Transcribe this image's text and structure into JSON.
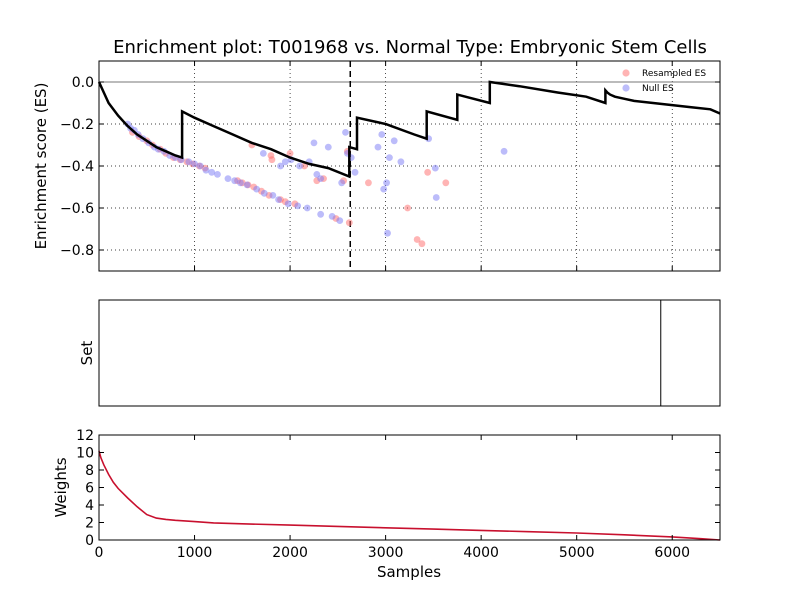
{
  "chart_data": [
    {
      "panel": "enrichment",
      "type": "line",
      "title": "Enrichment plot: T001968 vs. Normal Type: Embryonic Stem Cells",
      "xlabel": "",
      "ylabel": "Enrichment score (ES)",
      "xlim": [
        0,
        6500
      ],
      "ylim": [
        -0.9,
        0.1
      ],
      "yticks": [
        0.0,
        -0.2,
        -0.4,
        -0.6,
        -0.8
      ],
      "ytick_labels": [
        "0.0",
        "−0.2",
        "−0.4",
        "−0.6",
        "−0.8"
      ],
      "grid": true,
      "legend_position": "top-right",
      "baseline": 0.0,
      "peak_x": 2630,
      "es_curve": {
        "color": "#000000",
        "x": [
          0,
          100,
          200,
          300,
          400,
          500,
          600,
          700,
          800,
          870,
          870,
          1000,
          1200,
          1400,
          1600,
          1800,
          2000,
          2200,
          2400,
          2620,
          2620,
          2700,
          2700,
          3000,
          3300,
          3430,
          3430,
          3750,
          3750,
          4090,
          4090,
          4400,
          4800,
          5100,
          5300,
          5300,
          5320,
          5350,
          5400,
          5500,
          5600,
          5800,
          6000,
          6200,
          6400,
          6500
        ],
        "y": [
          0.0,
          -0.1,
          -0.16,
          -0.21,
          -0.25,
          -0.28,
          -0.31,
          -0.33,
          -0.35,
          -0.36,
          -0.14,
          -0.17,
          -0.21,
          -0.25,
          -0.29,
          -0.32,
          -0.36,
          -0.39,
          -0.41,
          -0.45,
          -0.31,
          -0.32,
          -0.17,
          -0.2,
          -0.25,
          -0.27,
          -0.14,
          -0.18,
          -0.06,
          -0.1,
          0.0,
          -0.02,
          -0.05,
          -0.07,
          -0.1,
          -0.04,
          -0.05,
          -0.06,
          -0.07,
          -0.08,
          -0.09,
          -0.1,
          -0.11,
          -0.12,
          -0.13,
          -0.15
        ]
      },
      "scatter_series": [
        {
          "name": "Resampled ES",
          "color": "#ff6a6a",
          "points": [
            [
              350,
              -0.24
            ],
            [
              420,
              -0.26
            ],
            [
              500,
              -0.28
            ],
            [
              560,
              -0.3
            ],
            [
              640,
              -0.32
            ],
            [
              700,
              -0.34
            ],
            [
              780,
              -0.36
            ],
            [
              850,
              -0.37
            ],
            [
              920,
              -0.38
            ],
            [
              980,
              -0.39
            ],
            [
              1050,
              -0.4
            ],
            [
              1110,
              -0.41
            ],
            [
              1450,
              -0.47
            ],
            [
              1500,
              -0.48
            ],
            [
              1560,
              -0.49
            ],
            [
              1620,
              -0.5
            ],
            [
              1700,
              -0.52
            ],
            [
              1780,
              -0.54
            ],
            [
              1900,
              -0.56
            ],
            [
              1950,
              -0.57
            ],
            [
              2050,
              -0.58
            ],
            [
              1600,
              -0.3
            ],
            [
              1800,
              -0.35
            ],
            [
              1810,
              -0.37
            ],
            [
              2000,
              -0.34
            ],
            [
              2150,
              -0.4
            ],
            [
              2280,
              -0.47
            ],
            [
              2350,
              -0.46
            ],
            [
              2480,
              -0.65
            ],
            [
              2560,
              -0.47
            ],
            [
              2600,
              -0.33
            ],
            [
              2620,
              -0.67
            ],
            [
              2820,
              -0.48
            ],
            [
              3230,
              -0.6
            ],
            [
              3330,
              -0.75
            ],
            [
              3380,
              -0.77
            ],
            [
              3440,
              -0.43
            ],
            [
              3630,
              -0.48
            ]
          ]
        },
        {
          "name": "Null ES",
          "color": "#7a7af5",
          "points": [
            [
              300,
              -0.2
            ],
            [
              330,
              -0.22
            ],
            [
              370,
              -0.23
            ],
            [
              410,
              -0.25
            ],
            [
              460,
              -0.27
            ],
            [
              520,
              -0.29
            ],
            [
              580,
              -0.31
            ],
            [
              620,
              -0.32
            ],
            [
              680,
              -0.33
            ],
            [
              740,
              -0.35
            ],
            [
              800,
              -0.36
            ],
            [
              860,
              -0.37
            ],
            [
              940,
              -0.38
            ],
            [
              1000,
              -0.39
            ],
            [
              1060,
              -0.4
            ],
            [
              1120,
              -0.42
            ],
            [
              1180,
              -0.43
            ],
            [
              1240,
              -0.44
            ],
            [
              1350,
              -0.46
            ],
            [
              1420,
              -0.47
            ],
            [
              1480,
              -0.48
            ],
            [
              1550,
              -0.49
            ],
            [
              1650,
              -0.51
            ],
            [
              1730,
              -0.53
            ],
            [
              1820,
              -0.54
            ],
            [
              1880,
              -0.56
            ],
            [
              1980,
              -0.58
            ],
            [
              2080,
              -0.59
            ],
            [
              2180,
              -0.6
            ],
            [
              2320,
              -0.63
            ],
            [
              2440,
              -0.64
            ],
            [
              2520,
              -0.66
            ],
            [
              1720,
              -0.34
            ],
            [
              1900,
              -0.4
            ],
            [
              1950,
              -0.38
            ],
            [
              2010,
              -0.37
            ],
            [
              2100,
              -0.4
            ],
            [
              2200,
              -0.38
            ],
            [
              2250,
              -0.29
            ],
            [
              2280,
              -0.44
            ],
            [
              2320,
              -0.46
            ],
            [
              2400,
              -0.31
            ],
            [
              2540,
              -0.48
            ],
            [
              2580,
              -0.24
            ],
            [
              2600,
              -0.34
            ],
            [
              2640,
              -0.36
            ],
            [
              2680,
              -0.43
            ],
            [
              2920,
              -0.31
            ],
            [
              2960,
              -0.25
            ],
            [
              2980,
              -0.51
            ],
            [
              3010,
              -0.48
            ],
            [
              3020,
              -0.72
            ],
            [
              3040,
              -0.36
            ],
            [
              3090,
              -0.28
            ],
            [
              3160,
              -0.38
            ],
            [
              3450,
              -0.27
            ],
            [
              3520,
              -0.41
            ],
            [
              3530,
              -0.55
            ],
            [
              4240,
              -0.33
            ]
          ]
        }
      ]
    },
    {
      "panel": "set",
      "type": "bar",
      "xlabel": "",
      "ylabel": "Set",
      "xlim": [
        0,
        6500
      ],
      "hits_x": [
        5880
      ]
    },
    {
      "panel": "weights",
      "type": "line",
      "xlabel": "Samples",
      "ylabel": "Weights",
      "xlim": [
        0,
        6500
      ],
      "ylim": [
        0,
        12
      ],
      "xticks": [
        0,
        1000,
        2000,
        3000,
        4000,
        5000,
        6000
      ],
      "xtick_labels": [
        "0",
        "1000",
        "2000",
        "3000",
        "4000",
        "5000",
        "6000"
      ],
      "yticks": [
        0,
        2,
        4,
        6,
        8,
        10,
        12
      ],
      "ytick_labels": [
        "0",
        "2",
        "4",
        "6",
        "8",
        "10",
        "12"
      ],
      "line_color": "#c8102e",
      "x": [
        0,
        20,
        50,
        100,
        150,
        200,
        300,
        400,
        500,
        600,
        700,
        800,
        1000,
        1200,
        1500,
        2000,
        2500,
        3000,
        3500,
        4000,
        4500,
        5000,
        5500,
        6000,
        6300,
        6500
      ],
      "y": [
        10.2,
        9.4,
        8.6,
        7.5,
        6.6,
        5.9,
        4.8,
        3.8,
        2.9,
        2.5,
        2.35,
        2.25,
        2.1,
        1.95,
        1.85,
        1.7,
        1.55,
        1.4,
        1.25,
        1.1,
        0.95,
        0.8,
        0.6,
        0.35,
        0.15,
        0.0
      ]
    }
  ]
}
